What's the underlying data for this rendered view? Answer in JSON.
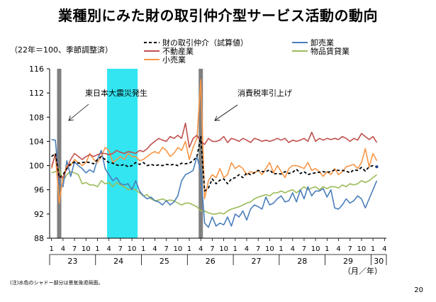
{
  "title": "業種別にみた財の取引仲介型サービス活動の動向",
  "base_note": "（22年＝100、季節調整済）",
  "footnote": "(注)水色のシャドー部分は景気後退局面。",
  "page_number": "20",
  "chart_data": {
    "type": "line",
    "ylim": [
      88,
      116
    ],
    "yticks": [
      88,
      92,
      96,
      100,
      104,
      108,
      112,
      116
    ],
    "month_tick_labels": [
      "1",
      "4",
      "7",
      "10",
      "1",
      "4",
      "7",
      "10",
      "1",
      "4",
      "7",
      "10",
      "1",
      "4",
      "7",
      "10",
      "1",
      "4",
      "7",
      "10",
      "1",
      "4",
      "7",
      "10",
      "1",
      "4",
      "7",
      "10",
      "1",
      "4"
    ],
    "year_labels": [
      "23",
      "24",
      "25",
      "26",
      "27",
      "28",
      "29",
      "30"
    ],
    "x_unit_label": "（月／年）",
    "shading": [
      {
        "type": "recession",
        "from": "2012-04",
        "to": "2012-11",
        "color": "#33E5F0"
      },
      {
        "type": "event",
        "from": "2011-03",
        "to": "2011-03",
        "color": "#808080"
      },
      {
        "type": "event",
        "from": "2014-04",
        "to": "2014-04",
        "color": "#808080"
      }
    ],
    "annotations": [
      {
        "text": "東日本大震災発生"
      },
      {
        "text": "消費税率引上げ"
      }
    ],
    "series": [
      {
        "name": "財の取引仲介（試算値）",
        "color": "#000000",
        "dash": "4,3",
        "values": [
          101.5,
          102.0,
          98.0,
          98.5,
          99.5,
          100.3,
          100.6,
          100.4,
          100.5,
          100.6,
          100.5,
          100.3,
          101.0,
          101.5,
          101.0,
          100.5,
          100.4,
          100.1,
          100.0,
          100.2,
          99.8,
          100.0,
          100.5,
          100.2,
          100.5,
          100.0,
          100.2,
          100.0,
          100.1,
          100.0,
          100.2,
          100.1,
          100.2,
          100.0,
          100.4,
          100.3,
          100.4,
          100.8,
          101.5,
          104.8,
          95.8,
          96.3,
          97.8,
          97.0,
          97.6,
          97.8,
          97.0,
          97.8,
          98.0,
          98.5,
          98.0,
          98.8,
          98.5,
          98.8,
          99.2,
          99.0,
          99.0,
          99.3,
          98.6,
          98.7,
          98.6,
          99.0,
          98.7,
          98.9,
          99.4,
          98.7,
          99.0,
          98.5,
          98.7,
          98.8,
          98.9,
          99.0,
          98.9,
          99.0,
          99.3,
          99.2,
          99.2,
          99.1,
          98.8,
          99.3,
          99.2,
          99.7,
          99.1,
          99.8,
          100.0,
          99.8
        ]
      },
      {
        "name": "卸売業",
        "color": "#4A7EBB",
        "dash": "",
        "values": [
          104.3,
          104.2,
          97.0,
          96.5,
          100.8,
          98.2,
          100.6,
          100.0,
          99.5,
          98.8,
          99.3,
          98.9,
          101.0,
          102.5,
          99.5,
          98.5,
          97.5,
          98.0,
          97.0,
          96.8,
          97.0,
          96.0,
          97.5,
          95.8,
          95.0,
          94.5,
          94.8,
          94.2,
          94.0,
          93.5,
          94.2,
          93.5,
          94.0,
          95.0,
          97.5,
          98.5,
          98.8,
          99.2,
          101.5,
          99.0,
          90.5,
          89.8,
          91.5,
          90.0,
          90.5,
          90.2,
          91.5,
          90.0,
          92.0,
          91.5,
          92.5,
          91.0,
          92.8,
          93.5,
          93.2,
          92.8,
          94.8,
          93.5,
          93.8,
          94.5,
          95.0,
          94.0,
          94.2,
          95.5,
          94.0,
          96.0,
          94.5,
          96.5,
          95.0,
          95.8,
          95.8,
          96.2,
          94.8,
          96.0,
          93.0,
          92.8,
          93.5,
          94.5,
          93.8,
          94.2,
          95.0,
          94.5,
          93.0,
          94.5,
          96.0,
          97.5
        ]
      },
      {
        "name": "不動産業",
        "color": "#C0504D",
        "dash": "",
        "values": [
          99.8,
          101.8,
          98.0,
          98.0,
          99.5,
          101.0,
          102.0,
          101.5,
          101.0,
          101.5,
          101.8,
          101.5,
          101.8,
          102.0,
          102.0,
          101.8,
          102.0,
          102.5,
          102.2,
          102.0,
          102.3,
          102.2,
          102.0,
          102.5,
          102.3,
          102.8,
          103.5,
          104.0,
          104.5,
          104.2,
          104.0,
          104.8,
          104.5,
          105.0,
          104.5,
          107.0,
          103.0,
          104.5,
          105.0,
          104.0,
          103.5,
          104.5,
          104.0,
          104.0,
          104.2,
          104.8,
          103.8,
          104.5,
          104.3,
          104.0,
          104.5,
          104.2,
          103.8,
          104.5,
          104.3,
          104.0,
          104.2,
          104.0,
          104.2,
          104.5,
          104.2,
          104.5,
          103.8,
          104.2,
          104.0,
          104.2,
          104.5,
          104.0,
          105.5,
          104.0,
          104.5,
          104.2,
          104.5,
          104.3,
          104.5,
          104.3,
          104.8,
          104.5,
          104.0,
          104.5,
          104.2,
          105.3,
          104.8,
          104.3,
          104.8,
          103.8
        ]
      },
      {
        "name": "物品賃貸業",
        "color": "#9BBB59",
        "dash": "",
        "values": [
          98.8,
          99.0,
          99.5,
          97.5,
          98.5,
          99.0,
          98.8,
          98.5,
          97.0,
          97.2,
          96.8,
          96.8,
          96.5,
          97.5,
          97.0,
          97.2,
          96.5,
          97.2,
          96.8,
          96.5,
          96.0,
          96.2,
          96.0,
          95.5,
          95.0,
          95.2,
          94.5,
          94.2,
          94.3,
          94.5,
          94.2,
          94.3,
          94.2,
          93.8,
          93.5,
          93.8,
          93.8,
          93.5,
          93.2,
          92.5,
          92.5,
          92.2,
          92.0,
          92.0,
          92.2,
          92.0,
          92.5,
          92.8,
          93.0,
          93.2,
          93.5,
          93.8,
          94.0,
          94.5,
          94.8,
          95.0,
          95.2,
          95.0,
          95.5,
          95.5,
          95.8,
          95.5,
          95.8,
          96.0,
          95.5,
          96.0,
          96.5,
          96.0,
          96.3,
          96.5,
          96.0,
          96.5,
          96.2,
          96.5,
          96.5,
          96.3,
          96.8,
          96.5,
          97.0,
          96.8,
          97.0,
          97.5,
          97.2,
          97.5,
          98.0,
          98.5
        ]
      },
      {
        "name": "小売業",
        "color": "#F79646",
        "dash": "",
        "values": [
          99.5,
          102.0,
          93.8,
          98.0,
          100.0,
          100.0,
          101.0,
          100.5,
          100.0,
          100.5,
          102.0,
          101.0,
          100.5,
          101.5,
          103.0,
          102.5,
          100.5,
          101.0,
          101.5,
          101.0,
          102.0,
          101.5,
          101.5,
          100.8,
          101.0,
          101.5,
          102.0,
          102.3,
          102.0,
          103.0,
          102.5,
          101.5,
          102.0,
          103.0,
          102.5,
          104.0,
          101.0,
          103.0,
          104.5,
          114.2,
          94.5,
          97.5,
          98.5,
          98.0,
          99.5,
          98.0,
          98.5,
          100.5,
          99.5,
          100.0,
          99.5,
          98.5,
          99.0,
          98.8,
          99.2,
          98.5,
          99.5,
          100.5,
          98.8,
          100.0,
          99.0,
          98.0,
          99.5,
          100.0,
          100.0,
          99.8,
          99.5,
          100.5,
          99.2,
          99.5,
          99.0,
          98.2,
          99.0,
          98.5,
          99.5,
          98.5,
          99.0,
          99.8,
          100.0,
          100.2,
          99.5,
          100.5,
          102.8,
          99.8,
          102.0,
          100.8
        ]
      }
    ]
  }
}
